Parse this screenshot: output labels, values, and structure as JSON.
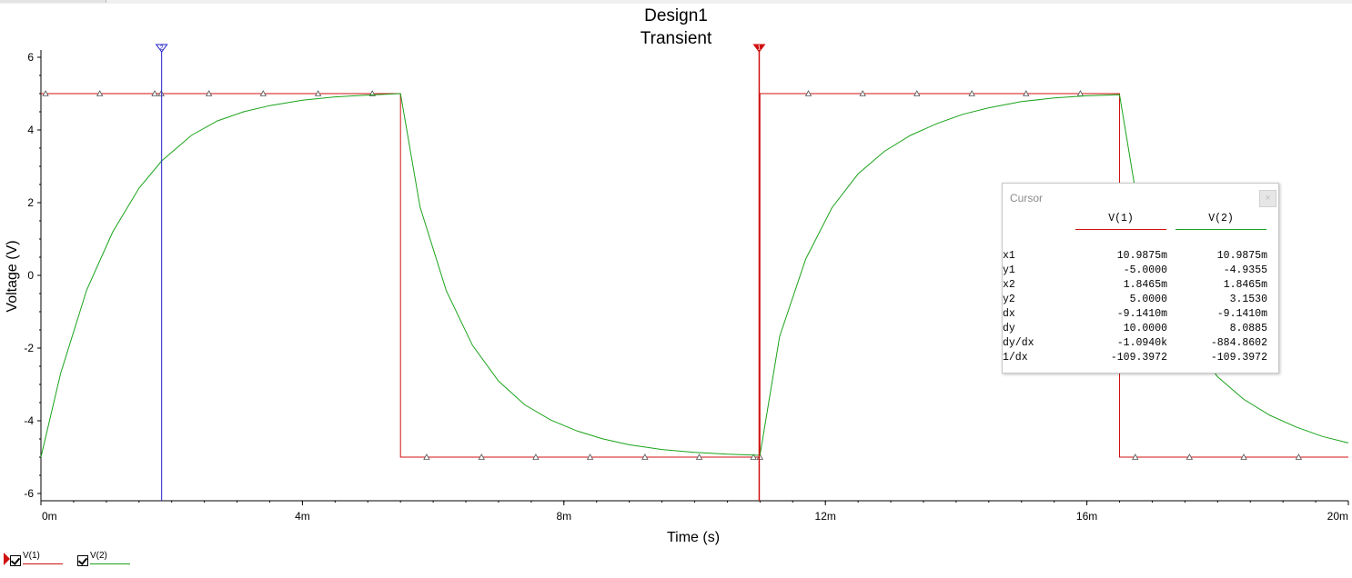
{
  "chart_data": {
    "type": "line",
    "title": "Design1",
    "subtitle": "Transient",
    "xlabel": "Time (s)",
    "ylabel": "Voltage (V)",
    "xlim": [
      0,
      0.02
    ],
    "ylim": [
      -6.2,
      6.2
    ],
    "x_ticks": [
      {
        "value": 0,
        "label": "0m"
      },
      {
        "value": 0.004,
        "label": "4m"
      },
      {
        "value": 0.008,
        "label": "8m"
      },
      {
        "value": 0.012,
        "label": "12m"
      },
      {
        "value": 0.016,
        "label": "16m"
      },
      {
        "value": 0.02,
        "label": "20m"
      }
    ],
    "y_ticks": [
      {
        "value": 6,
        "label": "6"
      },
      {
        "value": 4,
        "label": "4"
      },
      {
        "value": 2,
        "label": "2"
      },
      {
        "value": 0,
        "label": "0"
      },
      {
        "value": -2,
        "label": "-2"
      },
      {
        "value": -4,
        "label": "-4"
      },
      {
        "value": -6,
        "label": "-6"
      }
    ],
    "grid": false,
    "legend_position": "bottom-left",
    "series": [
      {
        "name": "V(1)",
        "color": "#d01010",
        "x": [
          0,
          0.0055,
          0.0055,
          0.011,
          0.011,
          0.0165,
          0.0165,
          0.02
        ],
        "y": [
          5,
          5,
          -5,
          -5,
          5,
          5,
          -5,
          -5
        ],
        "markers_x": [
          7e-05,
          0.0009,
          0.00174,
          0.00184,
          0.00257,
          0.0034,
          0.00424,
          0.00507,
          0.0059,
          0.00674,
          0.00757,
          0.0084,
          0.00924,
          0.01007,
          0.0109,
          0.011,
          0.01174,
          0.01257,
          0.0134,
          0.01424,
          0.01507,
          0.0159,
          0.01674,
          0.01757,
          0.0184,
          0.01924
        ],
        "markers_y": [
          5,
          5,
          5,
          5,
          5,
          5,
          5,
          5,
          -5,
          -5,
          -5,
          -5,
          -5,
          -5,
          -5,
          -5,
          5,
          5,
          5,
          5,
          5,
          5,
          -5,
          -5,
          -5,
          -5
        ]
      },
      {
        "name": "V(2)",
        "color": "#1aa31a",
        "x": [
          0,
          0.0003,
          0.0007,
          0.0011,
          0.0015,
          0.00185,
          0.0023,
          0.0027,
          0.0031,
          0.0035,
          0.004,
          0.0045,
          0.005,
          0.0055,
          0.0058,
          0.0062,
          0.0066,
          0.007,
          0.0074,
          0.0078,
          0.0082,
          0.0086,
          0.009,
          0.0095,
          0.01,
          0.0105,
          0.011,
          0.0113,
          0.0117,
          0.0121,
          0.0125,
          0.0129,
          0.0133,
          0.0137,
          0.0141,
          0.0145,
          0.015,
          0.0155,
          0.016,
          0.0165,
          0.0168,
          0.0172,
          0.0176,
          0.018,
          0.0184,
          0.0188,
          0.0192,
          0.0196,
          0.02
        ],
        "y": [
          -5.0,
          -2.7,
          -0.4,
          1.2,
          2.4,
          3.153,
          3.85,
          4.25,
          4.5,
          4.67,
          4.82,
          4.91,
          4.96,
          5.0,
          1.88,
          -0.42,
          -1.92,
          -2.91,
          -3.56,
          -3.98,
          -4.28,
          -4.5,
          -4.66,
          -4.79,
          -4.87,
          -4.92,
          -4.95,
          -1.68,
          0.45,
          1.86,
          2.79,
          3.41,
          3.85,
          4.17,
          4.43,
          4.61,
          4.78,
          4.88,
          4.94,
          4.97,
          1.7,
          -0.45,
          -1.86,
          -2.79,
          -3.41,
          -3.85,
          -4.17,
          -4.43,
          -4.61
        ]
      }
    ],
    "cursors": [
      {
        "name": "cursor-1",
        "x": 0.0109875,
        "color": "#d01010",
        "label": "1"
      },
      {
        "name": "cursor-2",
        "x": 0.0018465,
        "color": "#2020c8",
        "label": "2"
      }
    ]
  },
  "legend": [
    {
      "name": "V(1)",
      "color": "#d01010",
      "checked": true
    },
    {
      "name": "V(2)",
      "color": "#1aa31a",
      "checked": true
    }
  ],
  "cursor_panel": {
    "title": "Cursor",
    "close_label": "×",
    "columns": [
      "V(1)",
      "V(2)"
    ],
    "rows": [
      {
        "label": "x1",
        "v1": "10.9875m",
        "v2": "10.9875m"
      },
      {
        "label": "y1",
        "v1": "-5.0000",
        "v2": "-4.9355"
      },
      {
        "label": "x2",
        "v1": "1.8465m",
        "v2": "1.8465m"
      },
      {
        "label": "y2",
        "v1": "5.0000",
        "v2": "3.1530"
      },
      {
        "label": "dx",
        "v1": "-9.1410m",
        "v2": "-9.1410m"
      },
      {
        "label": "dy",
        "v1": "10.0000",
        "v2": "8.0885"
      },
      {
        "label": "dy/dx",
        "v1": "-1.0940k",
        "v2": "-884.8602"
      },
      {
        "label": "1/dx",
        "v1": "-109.3972",
        "v2": "-109.3972"
      }
    ]
  }
}
